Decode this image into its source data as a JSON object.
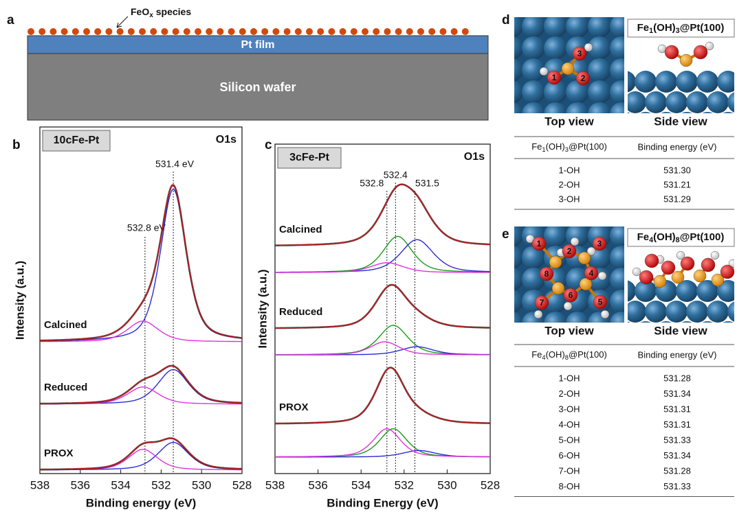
{
  "panel_a": {
    "letter": "a",
    "species_label": [
      {
        "text": "FeO"
      },
      {
        "sub": "x"
      },
      {
        "text": " species"
      }
    ],
    "film": "Pt film",
    "wafer": "Silicon wafer"
  },
  "chart_data": [
    {
      "type": "peak-fit",
      "panel": "b",
      "sample": "10cFe-Pt",
      "core_level": "O1s",
      "x_label": "Binding energy (eV)",
      "y_label": "Intensity (a.u.)",
      "xlim": [
        538,
        528
      ],
      "xticks": [
        538,
        536,
        534,
        532,
        530,
        528
      ],
      "ylim": [
        0,
        100
      ],
      "fit_color": "#d01818",
      "reference_lines": [
        {
          "value": 532.8,
          "label": "532.8 eV"
        },
        {
          "value": 531.4,
          "label": "531.4 eV"
        }
      ],
      "spectra": [
        {
          "name": "Calcined",
          "baseline": 38,
          "component_baseline": 38,
          "peaks": [
            {
              "center": 531.4,
              "height": 44,
              "fwhm": 1.5,
              "color": "#2a2ad0"
            },
            {
              "center": 532.9,
              "height": 6,
              "fwhm": 1.8,
              "color": "#e030e0"
            }
          ]
        },
        {
          "name": "Reduced",
          "baseline": 20,
          "component_baseline": 20,
          "peaks": [
            {
              "center": 531.4,
              "height": 10,
              "fwhm": 1.8,
              "color": "#2a2ad0"
            },
            {
              "center": 532.9,
              "height": 5,
              "fwhm": 1.8,
              "color": "#e030e0"
            }
          ]
        },
        {
          "name": "PROX",
          "baseline": 1,
          "component_baseline": 1,
          "peaks": [
            {
              "center": 531.4,
              "height": 8,
              "fwhm": 1.8,
              "color": "#2a2ad0"
            },
            {
              "center": 532.9,
              "height": 6,
              "fwhm": 1.7,
              "color": "#e030e0"
            }
          ]
        }
      ]
    },
    {
      "type": "peak-fit",
      "panel": "c",
      "sample": "3cFe-Pt",
      "core_level": "O1s",
      "x_label": "Binding Energy (eV)",
      "y_label": "Intensity (a.u.)",
      "xlim": [
        538,
        528
      ],
      "xticks": [
        538,
        536,
        534,
        532,
        530,
        528
      ],
      "ylim": [
        0,
        100
      ],
      "fit_color": "#d01818",
      "reference_lines": [
        532.8,
        532.4,
        531.5
      ],
      "spectra": [
        {
          "name": "Calcined",
          "baseline": 69,
          "component_baseline": 61,
          "peaks": [
            {
              "center": 532.3,
              "height": 11,
              "fwhm": 1.6,
              "color": "#1a9a1a"
            },
            {
              "center": 531.4,
              "height": 10,
              "fwhm": 1.8,
              "color": "#2a2ad0"
            },
            {
              "center": 532.8,
              "height": 3,
              "fwhm": 1.8,
              "color": "#e030e0"
            }
          ]
        },
        {
          "name": "Reduced",
          "baseline": 44,
          "component_baseline": 36,
          "peaks": [
            {
              "center": 532.5,
              "height": 9,
              "fwhm": 1.6,
              "color": "#1a9a1a"
            },
            {
              "center": 531.4,
              "height": 2.5,
              "fwhm": 1.8,
              "color": "#2a2ad0"
            },
            {
              "center": 532.9,
              "height": 4,
              "fwhm": 1.6,
              "color": "#e030e0"
            }
          ]
        },
        {
          "name": "PROX",
          "baseline": 15,
          "component_baseline": 5,
          "peaks": [
            {
              "center": 532.5,
              "height": 8.6,
              "fwhm": 1.5,
              "color": "#1a9a1a"
            },
            {
              "center": 531.3,
              "height": 2,
              "fwhm": 1.8,
              "color": "#2a2ad0"
            },
            {
              "center": 532.8,
              "height": 8.6,
              "fwhm": 1.5,
              "color": "#e030e0"
            }
          ]
        }
      ]
    }
  ],
  "panel_d": {
    "letter": "d",
    "formula": [
      {
        "text": "Fe"
      },
      {
        "sub": "1"
      },
      {
        "text": "(OH)"
      },
      {
        "sub": "3"
      },
      {
        "text": "@Pt(100)"
      }
    ],
    "atom_labels": [
      "1",
      "2",
      "3"
    ],
    "captions": [
      "Top view",
      "Side view"
    ],
    "table": {
      "header": "Binding energy (eV)",
      "rows": [
        [
          "1-OH",
          "531.30"
        ],
        [
          "2-OH",
          "531.21"
        ],
        [
          "3-OH",
          "531.29"
        ]
      ]
    }
  },
  "panel_e": {
    "letter": "e",
    "formula": [
      {
        "text": "Fe"
      },
      {
        "sub": "4"
      },
      {
        "text": "(OH)"
      },
      {
        "sub": "8"
      },
      {
        "text": "@Pt(100)"
      }
    ],
    "atom_labels": [
      "1",
      "2",
      "3",
      "4",
      "5",
      "6",
      "7",
      "8"
    ],
    "captions": [
      "Top view",
      "Side view"
    ],
    "table": {
      "header": "Binding energy (eV)",
      "rows": [
        [
          "1-OH",
          "531.28"
        ],
        [
          "2-OH",
          "531.34"
        ],
        [
          "3-OH",
          "531.31"
        ],
        [
          "4-OH",
          "531.31"
        ],
        [
          "5-OH",
          "531.33"
        ],
        [
          "6-OH",
          "531.34"
        ],
        [
          "7-OH",
          "531.28"
        ],
        [
          "8-OH",
          "531.33"
        ]
      ]
    }
  }
}
